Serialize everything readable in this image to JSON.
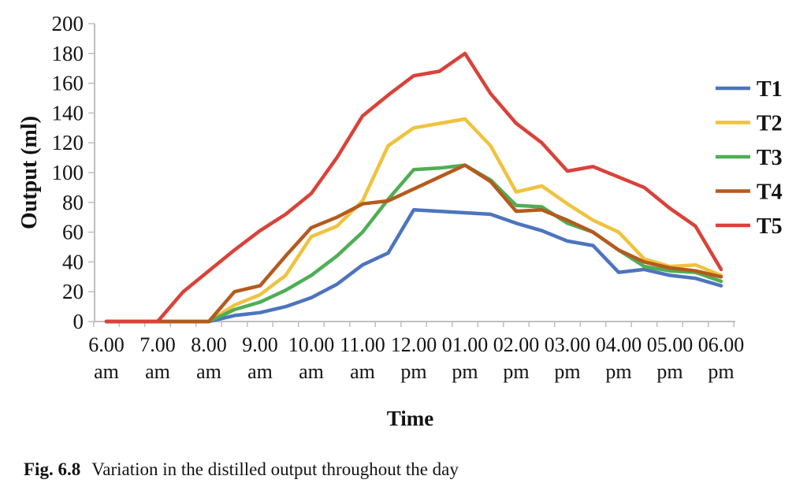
{
  "figure": {
    "caption_label": "Fig. 6.8",
    "caption_text": "Variation in the distilled output throughout the day"
  },
  "chart_data": {
    "type": "line",
    "title": "",
    "xlabel": "Time",
    "ylabel": "Output (ml)",
    "ylim": [
      0,
      200
    ],
    "ytick_step": 20,
    "grid": false,
    "legend_position": "right",
    "x_interval_minutes": 30,
    "categories": [
      "6.00 am",
      "6.30 am",
      "7.00 am",
      "7.30 am",
      "8.00 am",
      "8.30 am",
      "9.00 am",
      "9.30 am",
      "10.00 am",
      "10.30 am",
      "11.00 am",
      "11.30 am",
      "12.00 pm",
      "12.30 pm",
      "01.00 pm",
      "01.30 pm",
      "02.00 pm",
      "02.30 pm",
      "03.00 pm",
      "03.30 pm",
      "04.00 pm",
      "04.30 pm",
      "05.00 pm",
      "05.30 pm",
      "06.00 pm"
    ],
    "x_axis_tick_labels": [
      [
        "6.00",
        "am"
      ],
      [
        "7.00",
        "am"
      ],
      [
        "8.00",
        "am"
      ],
      [
        "9.00",
        "am"
      ],
      [
        "10.00",
        "am"
      ],
      [
        "11.00",
        "am"
      ],
      [
        "12.00",
        "pm"
      ],
      [
        "01.00",
        "pm"
      ],
      [
        "02.00",
        "pm"
      ],
      [
        "03.00",
        "pm"
      ],
      [
        "04.00",
        "pm"
      ],
      [
        "05.00",
        "pm"
      ],
      [
        "06.00",
        "pm"
      ]
    ],
    "series": [
      {
        "name": "T1",
        "color": "#4D74BE",
        "values": [
          0,
          0,
          0,
          0,
          0,
          4,
          6,
          10,
          16,
          25,
          38,
          46,
          75,
          74,
          73,
          72,
          66,
          61,
          54,
          51,
          33,
          35,
          31,
          29,
          24
        ]
      },
      {
        "name": "T2",
        "color": "#F0C23E",
        "values": [
          0,
          0,
          0,
          0,
          0,
          11,
          18,
          31,
          57,
          64,
          81,
          118,
          130,
          133,
          136,
          118,
          87,
          91,
          79,
          68,
          60,
          42,
          37,
          38,
          31
        ]
      },
      {
        "name": "T3",
        "color": "#4FAE55",
        "values": [
          0,
          0,
          0,
          0,
          0,
          8,
          13,
          21,
          31,
          44,
          60,
          82,
          102,
          103,
          105,
          95,
          78,
          77,
          66,
          60,
          48,
          37,
          34,
          33,
          27
        ]
      },
      {
        "name": "T4",
        "color": "#B55A1E",
        "values": [
          0,
          0,
          0,
          0,
          0,
          20,
          24,
          44,
          63,
          70,
          79,
          81,
          89,
          97,
          105,
          94,
          74,
          75,
          68,
          60,
          48,
          40,
          36,
          34,
          30
        ]
      },
      {
        "name": "T5",
        "color": "#D9423A",
        "values": [
          0,
          0,
          0,
          20,
          34,
          48,
          61,
          72,
          86,
          110,
          138,
          152,
          165,
          168,
          180,
          153,
          133,
          120,
          101,
          104,
          97,
          90,
          76,
          64,
          35
        ]
      }
    ],
    "axis_color": "#BFBFBF",
    "text_color": "#131313"
  }
}
